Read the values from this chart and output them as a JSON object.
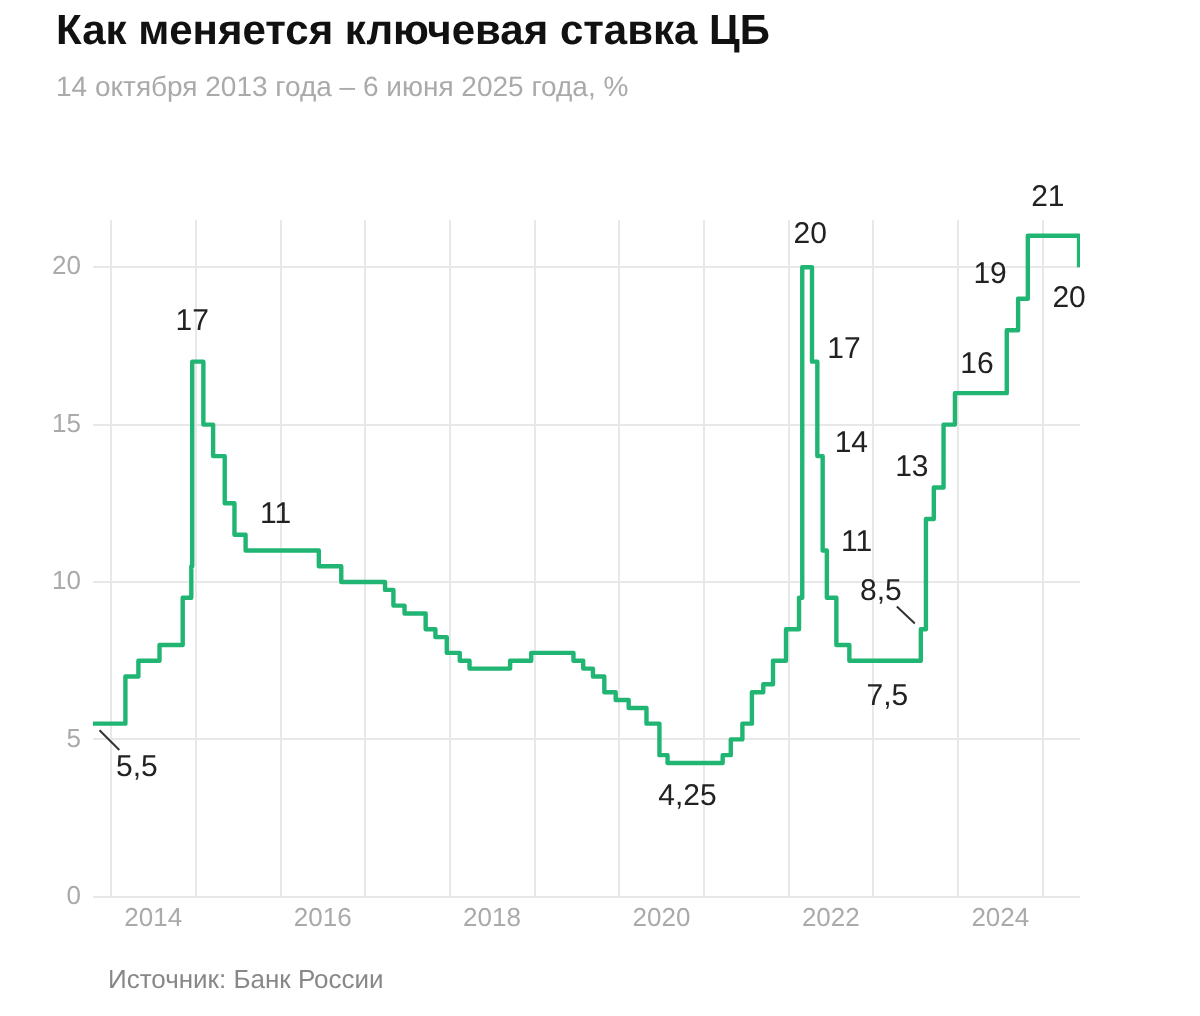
{
  "chart_data": {
    "type": "step",
    "title": "Как меняется ключевая ставка ЦБ",
    "subtitle": "14 октября 2013 года – 6 июня 2025 года, %",
    "x": [
      "2013-10-14",
      "2014-03-03",
      "2014-04-28",
      "2014-07-28",
      "2014-11-05",
      "2014-12-12",
      "2014-12-16",
      "2015-02-02",
      "2015-03-16",
      "2015-05-05",
      "2015-06-16",
      "2015-08-03",
      "2016-06-14",
      "2016-09-19",
      "2017-03-27",
      "2017-05-02",
      "2017-06-19",
      "2017-09-18",
      "2017-10-30",
      "2017-12-18",
      "2018-02-12",
      "2018-03-26",
      "2018-09-17",
      "2018-12-17",
      "2019-06-17",
      "2019-07-29",
      "2019-09-09",
      "2019-10-28",
      "2019-12-16",
      "2020-02-10",
      "2020-04-27",
      "2020-06-22",
      "2020-07-27",
      "2021-03-22",
      "2021-04-26",
      "2021-06-15",
      "2021-07-26",
      "2021-09-13",
      "2021-10-25",
      "2021-12-20",
      "2022-02-14",
      "2022-02-28",
      "2022-04-11",
      "2022-05-04",
      "2022-05-27",
      "2022-06-14",
      "2022-07-25",
      "2022-09-19",
      "2023-07-24",
      "2023-08-15",
      "2023-09-18",
      "2023-10-30",
      "2023-12-18",
      "2024-07-29",
      "2024-09-16",
      "2024-10-28",
      "2025-06-06"
    ],
    "series": [
      {
        "color": "#21b573",
        "values": [
          5.5,
          7,
          7.5,
          8,
          9.5,
          10.5,
          17,
          15,
          14,
          12.5,
          11.5,
          11,
          10.5,
          10,
          9.75,
          9.25,
          9,
          8.5,
          8.25,
          7.75,
          7.5,
          7.25,
          7.5,
          7.75,
          7.5,
          7.25,
          7,
          6.5,
          6.25,
          6,
          5.5,
          4.5,
          4.25,
          4.5,
          5,
          5.5,
          6.5,
          6.75,
          7.5,
          8.5,
          9.5,
          20,
          17,
          14,
          11,
          9.5,
          8,
          7.5,
          8.5,
          12,
          13,
          15,
          16,
          18,
          19,
          21,
          20
        ]
      }
    ],
    "xlim": [
      "2013-10-14",
      "2025-06-10"
    ],
    "xticks": [
      {
        "value": "2014",
        "label": null
      },
      {
        "value": "2014-07-01",
        "label": "2014"
      },
      {
        "value": "2015",
        "label": null
      },
      {
        "value": "2016",
        "label": null
      },
      {
        "value": "2016-07-01",
        "label": "2016"
      },
      {
        "value": "2017",
        "label": null
      },
      {
        "value": "2018",
        "label": null
      },
      {
        "value": "2018-07-01",
        "label": "2018"
      },
      {
        "value": "2019",
        "label": null
      },
      {
        "value": "2020",
        "label": null
      },
      {
        "value": "2020-07-01",
        "label": "2020"
      },
      {
        "value": "2021",
        "label": null
      },
      {
        "value": "2022",
        "label": null
      },
      {
        "value": "2022-07-01",
        "label": "2022"
      },
      {
        "value": "2023",
        "label": null
      },
      {
        "value": "2024",
        "label": null
      },
      {
        "value": "2024-07-01",
        "label": "2024"
      },
      {
        "value": "2025",
        "label": null
      }
    ],
    "ylim": [
      0,
      21.5
    ],
    "yticks": [
      0,
      5,
      10,
      15,
      20
    ],
    "grid": true,
    "legend": false,
    "annotations": [
      {
        "text": "5,5",
        "x": "2013-10-14",
        "y": 5.5
      },
      {
        "text": "17",
        "x": "2014-12-16",
        "y": 17
      },
      {
        "text": "11",
        "x": "2015-08-03",
        "y": 11
      },
      {
        "text": "4,25",
        "x": "2020-07-27",
        "y": 4.25
      },
      {
        "text": "20",
        "x": "2022-02-28",
        "y": 20
      },
      {
        "text": "17",
        "x": "2022-04-11",
        "y": 17
      },
      {
        "text": "14",
        "x": "2022-05-04",
        "y": 14
      },
      {
        "text": "11",
        "x": "2022-05-27",
        "y": 11
      },
      {
        "text": "8,5",
        "x": "2023-07-24",
        "y": 8.5
      },
      {
        "text": "7,5",
        "x": "2022-09-19",
        "y": 7.5
      },
      {
        "text": "13",
        "x": "2023-09-18",
        "y": 13
      },
      {
        "text": "16",
        "x": "2023-12-18",
        "y": 16
      },
      {
        "text": "19",
        "x": "2024-09-16",
        "y": 19
      },
      {
        "text": "21",
        "x": "2024-10-28",
        "y": 21
      },
      {
        "text": "20",
        "x": "2025-06-06",
        "y": 20
      },
      "Источник: Банк России"
    ]
  }
}
